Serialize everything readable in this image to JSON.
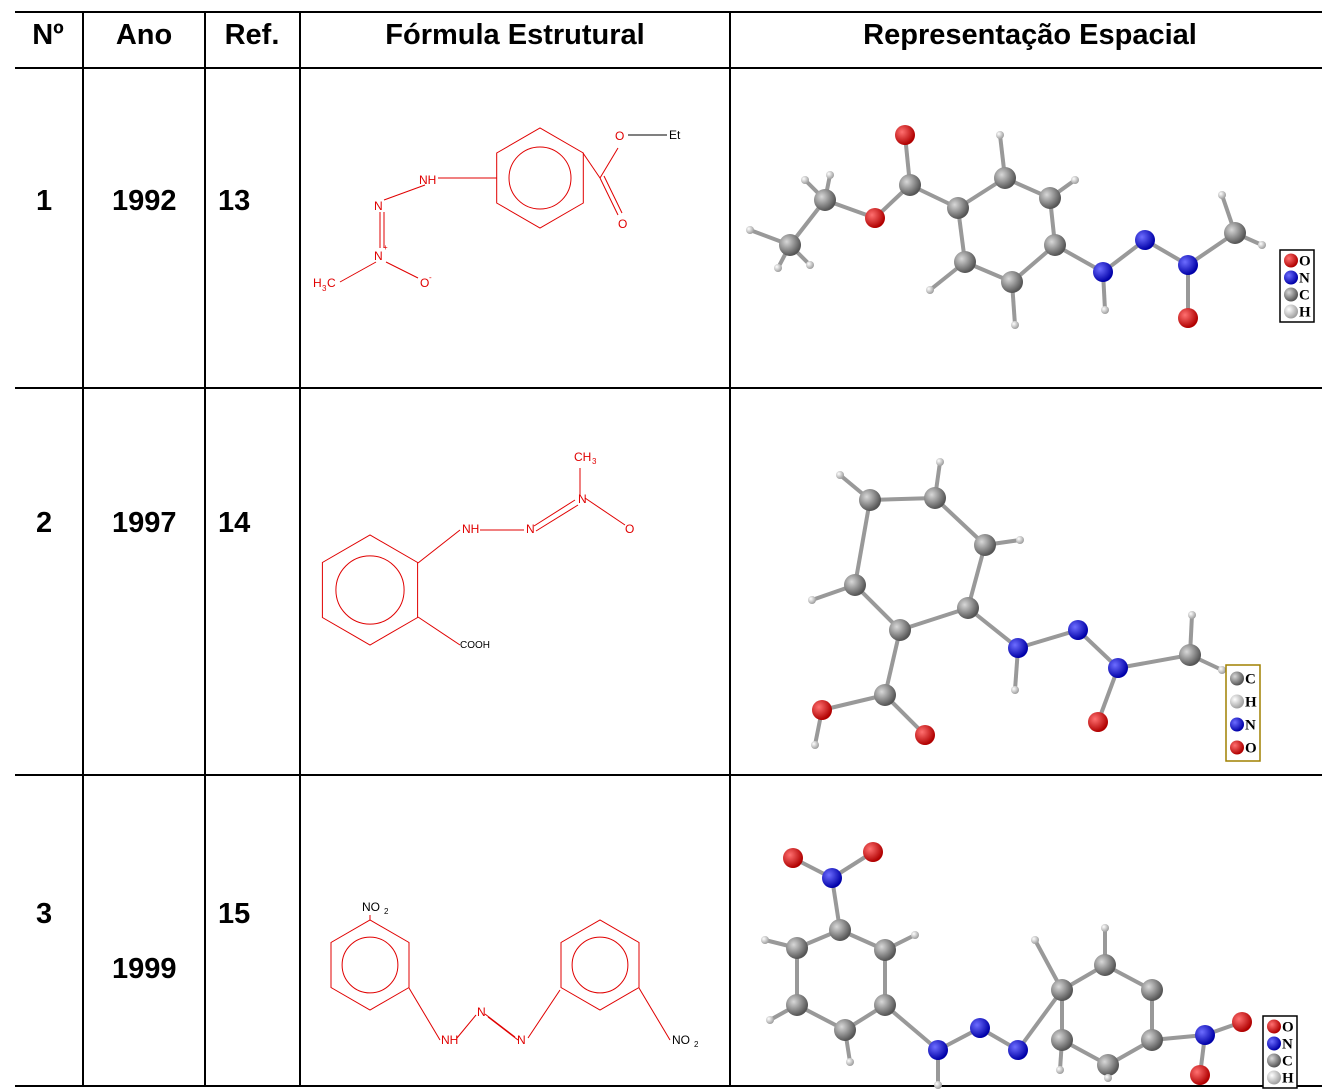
{
  "table": {
    "header": [
      "Nº",
      "Ano",
      "Ref.",
      "Fórmula Estrutural",
      "Representação Espacial"
    ],
    "rows": [
      {
        "number": "1",
        "year": "1992",
        "ref": "13",
        "formula_labels": [
          "NH",
          "N",
          "N",
          "+",
          "O",
          "-",
          "H",
          "3",
          "C",
          "O",
          "Et",
          "O"
        ],
        "legend": [
          "O",
          "N",
          "C",
          "H"
        ]
      },
      {
        "number": "2",
        "year": "1997",
        "ref": "14",
        "formula_labels": [
          "CH",
          "3",
          "NH",
          "N",
          "N",
          "O",
          "COOH"
        ],
        "legend": [
          "C",
          "H",
          "N",
          "O"
        ]
      },
      {
        "number": "3",
        "year": "1999",
        "ref": "15",
        "formula_labels": [
          "NO",
          "2",
          "NH",
          "N",
          "N",
          "NO",
          "2"
        ],
        "legend": [
          "O",
          "N",
          "C",
          "H"
        ]
      }
    ]
  }
}
